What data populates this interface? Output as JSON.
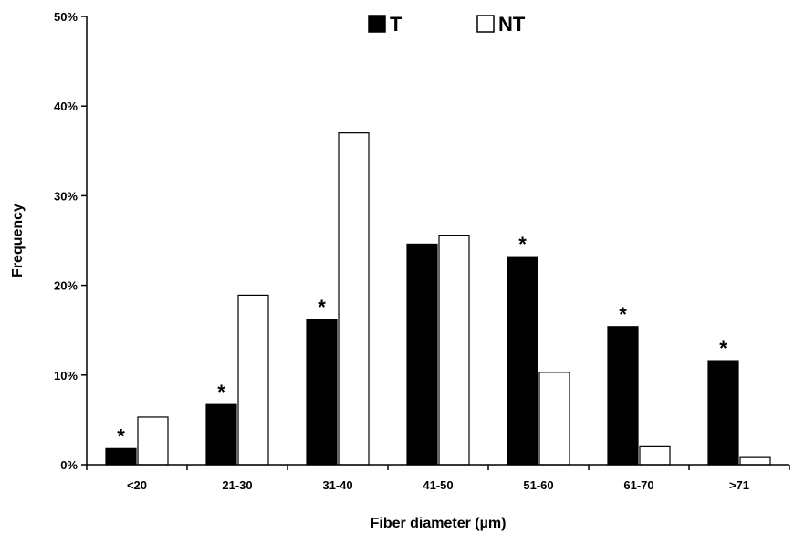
{
  "chart_data": {
    "type": "bar",
    "title": "",
    "xlabel": "Fiber diameter (µm)",
    "ylabel": "Frequency",
    "ylim": [
      0,
      50
    ],
    "y_ticks": [
      "0%",
      "10%",
      "20%",
      "30%",
      "40%",
      "50%"
    ],
    "categories": [
      "<20",
      "21-30",
      "31-40",
      "41-50",
      "51-60",
      "61-70",
      ">71"
    ],
    "series": [
      {
        "name": "T",
        "color": "#000000",
        "values": [
          1.8,
          6.7,
          16.2,
          24.6,
          23.2,
          15.4,
          11.6
        ]
      },
      {
        "name": "NT",
        "color": "#ffffff",
        "values": [
          5.3,
          18.9,
          37.0,
          25.6,
          10.3,
          2.0,
          0.8
        ]
      }
    ],
    "significance_marker": "*",
    "significant_categories": [
      0,
      1,
      2,
      4,
      5,
      6
    ],
    "grid": false,
    "legend_position": "top"
  }
}
